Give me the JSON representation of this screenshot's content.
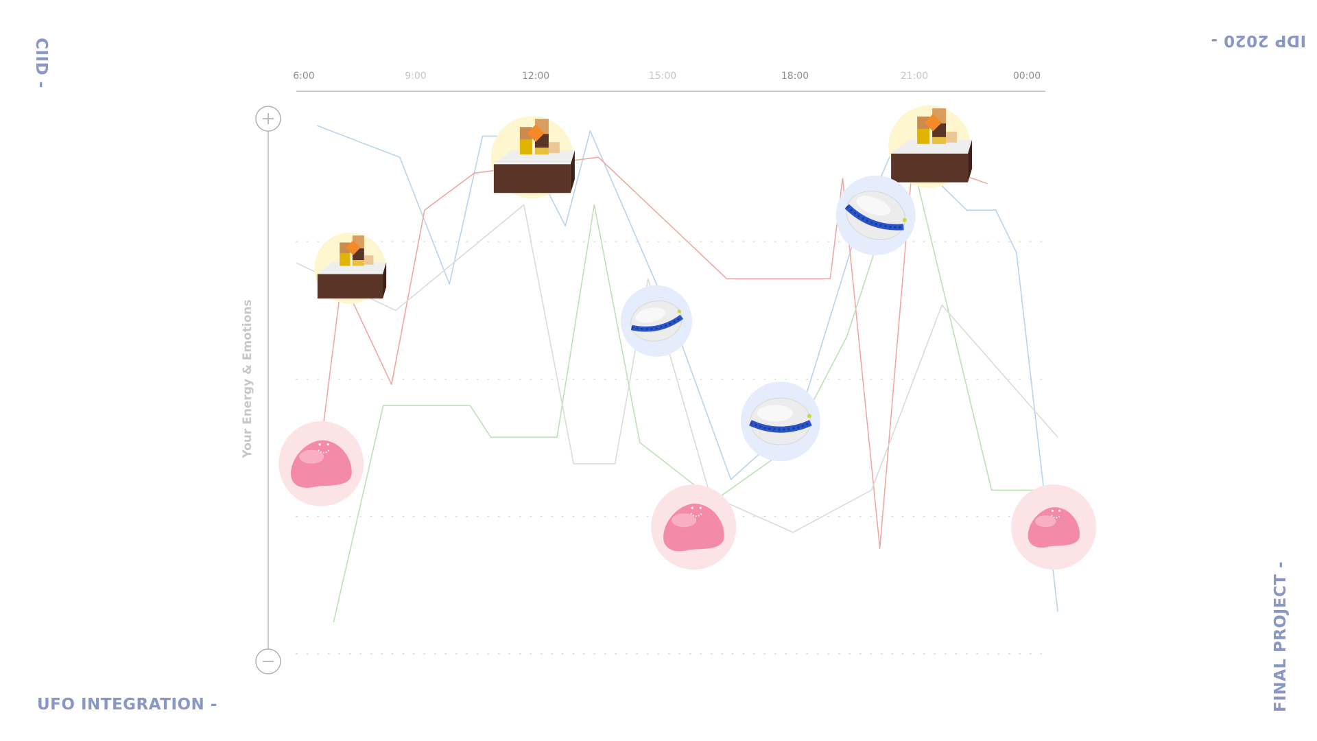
{
  "corners": {
    "top_left": "CIID -",
    "top_right": "IDP 2020 -",
    "bottom_left": "UFO INTEGRATION -",
    "bottom_right": "FINAL PROJECT -"
  },
  "colors": {
    "corner_text": "#8a97c4",
    "blue_line": "#b6d3ef",
    "red_line": "#f2a6a0",
    "green_line": "#bfe0b4",
    "gray_line": "#d8dcd5",
    "yellow_halo": "#fdf6cf",
    "blue_halo": "#e5ecfb",
    "pink_halo": "#fbe3e6"
  },
  "chart_data": {
    "type": "line",
    "title": "",
    "xlabel": "",
    "ylabel": "Your Energy & Emotions",
    "x_ticks": [
      "6:00",
      "9:00",
      "12:00",
      "15:00",
      "18:00",
      "21:00",
      "00:00"
    ],
    "x_tick_highlight": [
      true,
      false,
      true,
      false,
      true,
      false,
      true
    ],
    "xlim": [
      6,
      24
    ],
    "ylim": [
      0,
      100
    ],
    "y_axis_icons": {
      "top": "plus-icon",
      "bottom": "minus-icon"
    },
    "grid": "dotted-horizontal",
    "gridlines_y": [
      0,
      26,
      52,
      78
    ],
    "series": [
      {
        "color": "#b6d3ef",
        "points": [
          [
            6.5,
            100
          ],
          [
            8.5,
            94
          ],
          [
            9.7,
            70
          ],
          [
            10.5,
            98
          ],
          [
            11.4,
            98
          ],
          [
            12.5,
            81
          ],
          [
            13.1,
            99
          ],
          [
            15.2,
            61
          ],
          [
            16.5,
            33
          ],
          [
            18.2,
            45
          ],
          [
            18.2,
            46
          ],
          [
            19.5,
            79
          ],
          [
            20.5,
            97
          ],
          [
            22.2,
            84
          ],
          [
            22.9,
            84
          ],
          [
            23.4,
            76
          ],
          [
            24.4,
            8
          ]
        ]
      },
      {
        "color": "#f2a6a0",
        "points": [
          [
            6.6,
            40
          ],
          [
            7.1,
            71
          ],
          [
            8.3,
            51
          ],
          [
            9.1,
            84
          ],
          [
            10.3,
            91
          ],
          [
            13.3,
            94
          ],
          [
            16.4,
            71
          ],
          [
            18.9,
            71
          ],
          [
            19.2,
            90
          ],
          [
            20.1,
            20
          ],
          [
            20.9,
            94
          ],
          [
            22.7,
            89
          ]
        ]
      },
      {
        "color": "#bfe0b4",
        "points": [
          [
            6.9,
            6
          ],
          [
            8.1,
            47
          ],
          [
            10.2,
            47
          ],
          [
            10.7,
            41
          ],
          [
            12.3,
            41
          ],
          [
            13.2,
            85
          ],
          [
            14.3,
            40
          ],
          [
            16.1,
            29
          ],
          [
            17.9,
            39
          ],
          [
            19.3,
            60
          ],
          [
            20.8,
            96
          ],
          [
            22.8,
            31
          ],
          [
            24.7,
            31
          ]
        ]
      },
      {
        "color": "#d8dcd5",
        "points": [
          [
            6.0,
            74
          ],
          [
            8.4,
            65
          ],
          [
            11.5,
            85
          ],
          [
            12.7,
            36
          ],
          [
            13.7,
            36
          ],
          [
            14.5,
            71
          ],
          [
            16.0,
            30
          ],
          [
            18.0,
            23
          ],
          [
            19.9,
            31
          ],
          [
            21.6,
            66
          ],
          [
            24.4,
            41
          ]
        ]
      }
    ],
    "markers": [
      {
        "kind": "cube-tray",
        "halo": "yellow",
        "x": 7.3,
        "y": 73
      },
      {
        "kind": "cube-tray",
        "halo": "yellow",
        "x": 11.7,
        "y": 94
      },
      {
        "kind": "cube-tray",
        "halo": "yellow",
        "x": 21.3,
        "y": 96
      },
      {
        "kind": "cushion",
        "halo": "blue",
        "x": 14.7,
        "y": 63
      },
      {
        "kind": "cushion",
        "halo": "blue",
        "x": 20.0,
        "y": 83
      },
      {
        "kind": "cushion",
        "halo": "blue",
        "x": 17.7,
        "y": 44
      },
      {
        "kind": "blob",
        "halo": "pink",
        "x": 6.6,
        "y": 36
      },
      {
        "kind": "blob",
        "halo": "pink",
        "x": 15.6,
        "y": 24
      },
      {
        "kind": "blob",
        "halo": "pink",
        "x": 24.3,
        "y": 24
      }
    ]
  }
}
